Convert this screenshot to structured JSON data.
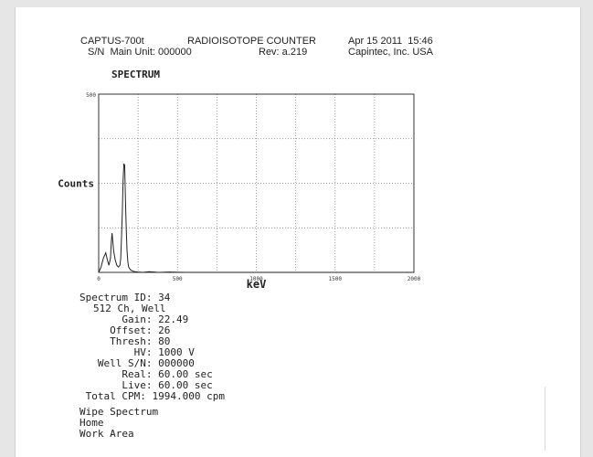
{
  "header": {
    "model": "CAPTUS-700t",
    "title": "RADIOISOTOPE COUNTER",
    "date": "Apr 15 2011  15:46",
    "serial": "S/N  Main Unit: 000000",
    "revision": "Rev: a.219",
    "manufacturer": "Capintec, Inc. USA",
    "section": "SPECTRUM"
  },
  "chart_data": {
    "type": "line",
    "title": "",
    "xlabel": "keV",
    "ylabel": "Counts",
    "xlim": [
      0,
      2000
    ],
    "ylim": [
      0,
      500
    ],
    "xticks": [
      0,
      500,
      1000,
      1500,
      2000
    ],
    "xtick_labels": [
      "0",
      "500",
      "1000",
      "1500",
      "2000"
    ],
    "ytick_labels": [
      "500"
    ],
    "grid": true,
    "series": [
      {
        "x": [
          0,
          15,
          30,
          45,
          55,
          65,
          75,
          80,
          85,
          95,
          105,
          115,
          125,
          135,
          140,
          145,
          150,
          155,
          160,
          165,
          170,
          175,
          180,
          185,
          190,
          200,
          210,
          220,
          230,
          250,
          280,
          320,
          380,
          450,
          550,
          700,
          900,
          1200,
          1600,
          2000
        ],
        "y": [
          0,
          15,
          40,
          55,
          35,
          20,
          40,
          85,
          110,
          60,
          35,
          20,
          15,
          20,
          40,
          100,
          170,
          260,
          305,
          300,
          200,
          120,
          60,
          30,
          15,
          8,
          5,
          3,
          2,
          1,
          0,
          2,
          0,
          1,
          0,
          0,
          0,
          0,
          0,
          0
        ]
      }
    ]
  },
  "info": {
    "spectrum_id": "Spectrum ID: 34",
    "channels": "512 Ch, Well",
    "gain": "       Gain: 22.49",
    "offset": "     Offset: 26",
    "thresh": "     Thresh: 80",
    "hv": "         HV: 1000 V",
    "well_sn": "   Well S/N: 000000",
    "real": "       Real: 60.00 sec",
    "live": "       Live: 60.00 sec",
    "total_cpm": " Total CPM: 1994.000 cpm"
  },
  "footer": [
    "Wipe Spectrum",
    "Home",
    "Work Area"
  ]
}
